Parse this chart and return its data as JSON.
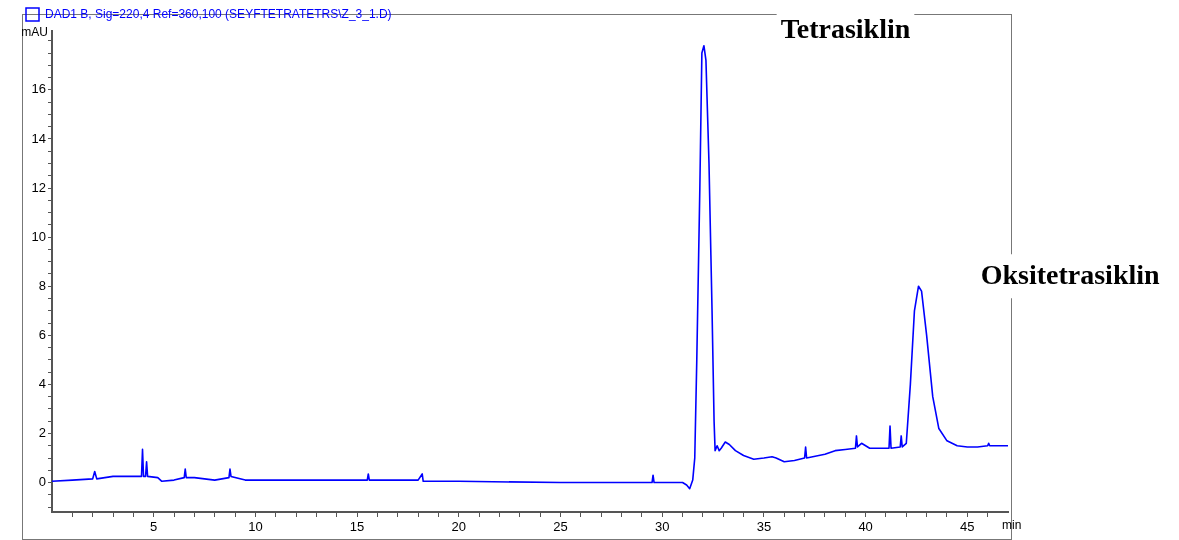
{
  "chart_data": {
    "type": "line",
    "xlabel": "min",
    "ylabel": "mAU",
    "legend": "top left",
    "marker": "none",
    "line_style": "solid",
    "grid": false,
    "annotations": [
      "Tetrasiklin",
      "Oksitetrasiklin"
    ],
    "xlim": [
      0,
      47
    ],
    "xticks": [
      {
        "value": 1,
        "label": null
      },
      {
        "value": 2,
        "label": null
      },
      {
        "value": 3,
        "label": null
      },
      {
        "value": 4,
        "label": null
      },
      5,
      {
        "value": 6,
        "label": null
      },
      {
        "value": 7,
        "label": null
      },
      {
        "value": 8,
        "label": null
      },
      {
        "value": 9,
        "label": null
      },
      10,
      {
        "value": 11,
        "label": null
      },
      {
        "value": 12,
        "label": null
      },
      {
        "value": 13,
        "label": null
      },
      {
        "value": 14,
        "label": null
      },
      15,
      {
        "value": 16,
        "label": null
      },
      {
        "value": 17,
        "label": null
      },
      {
        "value": 18,
        "label": null
      },
      {
        "value": 19,
        "label": null
      },
      20,
      {
        "value": 21,
        "label": null
      },
      {
        "value": 22,
        "label": null
      },
      {
        "value": 23,
        "label": null
      },
      {
        "value": 24,
        "label": null
      },
      25,
      {
        "value": 26,
        "label": null
      },
      {
        "value": 27,
        "label": null
      },
      {
        "value": 28,
        "label": null
      },
      {
        "value": 29,
        "label": null
      },
      30,
      {
        "value": 31,
        "label": null
      },
      {
        "value": 32,
        "label": null
      },
      {
        "value": 33,
        "label": null
      },
      {
        "value": 34,
        "label": null
      },
      35,
      {
        "value": 36,
        "label": null
      },
      {
        "value": 37,
        "label": null
      },
      {
        "value": 38,
        "label": null
      },
      {
        "value": 39,
        "label": null
      },
      40,
      {
        "value": 41,
        "label": null
      },
      {
        "value": 42,
        "label": null
      },
      {
        "value": 43,
        "label": null
      },
      {
        "value": 44,
        "label": null
      },
      45,
      {
        "value": 46,
        "label": null
      }
    ],
    "ylim": [
      -1.2,
      18.4
    ],
    "yticks": [
      {
        "value": -1,
        "label": null
      },
      {
        "value": -0.5,
        "label": null
      },
      0,
      {
        "value": 0.5,
        "label": null
      },
      {
        "value": 1,
        "label": null
      },
      {
        "value": 1.5,
        "label": null
      },
      2,
      {
        "value": 2.5,
        "label": null
      },
      {
        "value": 3,
        "label": null
      },
      {
        "value": 3.5,
        "label": null
      },
      4,
      {
        "value": 4.5,
        "label": null
      },
      {
        "value": 5,
        "label": null
      },
      {
        "value": 5.5,
        "label": null
      },
      6,
      {
        "value": 6.5,
        "label": null
      },
      {
        "value": 7,
        "label": null
      },
      {
        "value": 7.5,
        "label": null
      },
      8,
      {
        "value": 8.5,
        "label": null
      },
      {
        "value": 9,
        "label": null
      },
      {
        "value": 9.5,
        "label": null
      },
      10,
      {
        "value": 10.5,
        "label": null
      },
      {
        "value": 11,
        "label": null
      },
      {
        "value": 11.5,
        "label": null
      },
      12,
      {
        "value": 12.5,
        "label": null
      },
      {
        "value": 13,
        "label": null
      },
      {
        "value": 13.5,
        "label": null
      },
      14,
      {
        "value": 14.5,
        "label": null
      },
      {
        "value": 15,
        "label": null
      },
      {
        "value": 15.5,
        "label": null
      },
      16,
      {
        "value": 16.5,
        "label": null
      },
      {
        "value": 17,
        "label": null
      },
      {
        "value": 17.5,
        "label": null
      },
      {
        "value": 18,
        "label": null
      }
    ],
    "series": [
      {
        "name": "DAD1 B, Sig=220,4 Ref=360,100 (SEYFTETRATETRS\\Z_3_1.D)",
        "color": "#0000ff",
        "x": [
          0,
          1,
          2,
          2.1,
          2.2,
          3,
          4,
          4.4,
          4.45,
          4.5,
          4.6,
          4.65,
          4.7,
          5.2,
          5.4,
          6,
          6.5,
          6.55,
          6.6,
          7,
          8,
          8.7,
          8.75,
          8.8,
          9.5,
          12,
          15,
          15.5,
          15.55,
          15.6,
          18,
          18.2,
          18.25,
          20,
          25,
          29.5,
          29.55,
          29.6,
          31,
          31.2,
          31.35,
          31.5,
          31.6,
          31.7,
          31.85,
          31.95,
          32.05,
          32.15,
          32.3,
          32.45,
          32.55,
          32.6,
          32.7,
          32.8,
          32.9,
          33.1,
          33.3,
          33.6,
          34,
          34.5,
          35,
          35.4,
          35.6,
          36,
          36.5,
          37,
          37.05,
          37.1,
          38,
          38.5,
          39,
          39.5,
          39.55,
          39.6,
          39.8,
          40.2,
          41,
          41.15,
          41.2,
          41.25,
          41.7,
          41.75,
          41.8,
          42,
          42.2,
          42.4,
          42.6,
          42.75,
          43,
          43.3,
          43.6,
          44,
          44.5,
          45,
          45.5,
          46,
          46.05,
          46.1,
          47
        ],
        "values": [
          0.05,
          0.1,
          0.15,
          0.45,
          0.15,
          0.25,
          0.25,
          0.25,
          1.35,
          0.25,
          0.25,
          0.85,
          0.25,
          0.2,
          0.05,
          0.1,
          0.2,
          0.55,
          0.2,
          0.2,
          0.1,
          0.2,
          0.55,
          0.25,
          0.1,
          0.1,
          0.1,
          0.1,
          0.35,
          0.1,
          0.1,
          0.35,
          0.05,
          0.05,
          0,
          0,
          0.3,
          0,
          0,
          -0.1,
          -0.25,
          0.1,
          1,
          5,
          12,
          17.5,
          17.8,
          17.2,
          13,
          7,
          2.5,
          1.3,
          1.5,
          1.3,
          1.4,
          1.65,
          1.55,
          1.3,
          1.1,
          0.95,
          1,
          1.05,
          1,
          0.85,
          0.9,
          1,
          1.45,
          1,
          1.15,
          1.3,
          1.35,
          1.4,
          1.9,
          1.45,
          1.6,
          1.4,
          1.4,
          1.4,
          2.3,
          1.4,
          1.45,
          1.9,
          1.45,
          1.6,
          4,
          7,
          8,
          7.8,
          6,
          3.5,
          2.2,
          1.7,
          1.5,
          1.45,
          1.45,
          1.5,
          1.6,
          1.5,
          1.5
        ]
      }
    ]
  }
}
